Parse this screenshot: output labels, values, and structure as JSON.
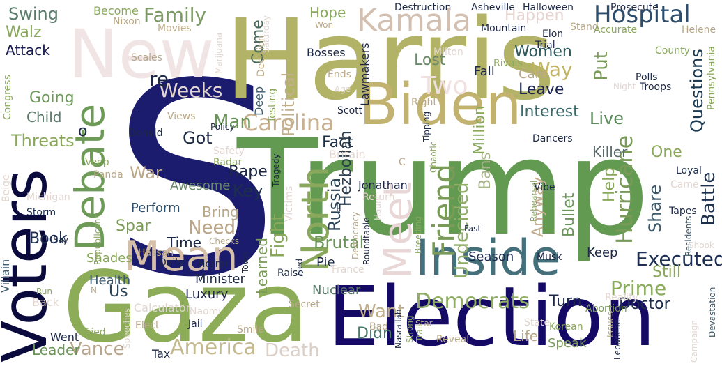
{
  "words": [
    {
      "text": "S",
      "color": "#1c1c6e"
    },
    {
      "text": "Trump",
      "color": "#639a52"
    },
    {
      "text": "Harris",
      "color": "#b3b368"
    },
    {
      "text": "Election",
      "color": "#140a66"
    },
    {
      "text": "Gaza",
      "color": "#8cac58"
    },
    {
      "text": "Voters",
      "color": "#0a0a3c"
    },
    {
      "text": "New",
      "color": "#f1e4e4"
    },
    {
      "text": "Biden",
      "color": "#c2b270"
    },
    {
      "text": "Inside",
      "color": "#44707c"
    },
    {
      "text": "Debate",
      "color": "#6e9a58"
    },
    {
      "text": "Mean",
      "color": "#d5bfa8"
    },
    {
      "text": "Meet",
      "color": "#e9d7d7"
    },
    {
      "text": "North",
      "color": "#8aa85c"
    },
    {
      "text": "Kamala",
      "color": "#d2bfb0"
    },
    {
      "text": "Hospital",
      "color": "#2c4e6c"
    },
    {
      "text": "Friend",
      "color": "#7a9a58"
    },
    {
      "text": "Family",
      "color": "#7b9a64"
    },
    {
      "text": "Carolina",
      "color": "#c8b090"
    },
    {
      "text": "Democrats",
      "color": "#8fae64"
    },
    {
      "text": "Undecided",
      "color": "#8fae68"
    },
    {
      "text": "Hurricane",
      "color": "#7a9a58"
    },
    {
      "text": "Executed",
      "color": "#1c2f52"
    },
    {
      "text": "Prime",
      "color": "#8aac5c"
    },
    {
      "text": "Vance",
      "color": "#b8a58c"
    },
    {
      "text": "America",
      "color": "#c4b88e"
    },
    {
      "text": "Questions",
      "color": "#1c3b52"
    },
    {
      "text": "Battle",
      "color": "#1c2f4c"
    },
    {
      "text": "Want",
      "color": "#c0ae8a"
    },
    {
      "text": "Put",
      "color": "#7a9a58"
    },
    {
      "text": "Way",
      "color": "#c2b464"
    },
    {
      "text": "Swing",
      "color": "#5a7c6a"
    },
    {
      "text": "Walz",
      "color": "#8aa85c"
    },
    {
      "text": "Attack",
      "color": "#16184e"
    },
    {
      "text": "Going",
      "color": "#6e9a58"
    },
    {
      "text": "Child",
      "color": "#5a7a6a"
    },
    {
      "text": "Threats",
      "color": "#8aa85c"
    },
    {
      "text": "Weeks",
      "color": "#e3d6d0"
    },
    {
      "text": "Book",
      "color": "#1c2f52"
    },
    {
      "text": "Need",
      "color": "#bca688"
    },
    {
      "text": "Key",
      "color": "#1c2f4c"
    },
    {
      "text": "War",
      "color": "#bca688"
    },
    {
      "text": "Rape",
      "color": "#1c2844"
    },
    {
      "text": "Fight",
      "color": "#8aa85c"
    },
    {
      "text": "Russia",
      "color": "#2c4458"
    },
    {
      "text": "Brutal",
      "color": "#6a9458"
    },
    {
      "text": "Learned",
      "color": "#7a9a58"
    },
    {
      "text": "Hezbollah",
      "color": "#2c3e50"
    },
    {
      "text": "Fact",
      "color": "#1c3044"
    },
    {
      "text": "Political",
      "color": "#c2b08c"
    },
    {
      "text": "Lost",
      "color": "#6a8a6a"
    },
    {
      "text": "Two",
      "color": "#f0e0e0"
    },
    {
      "text": "Hope",
      "color": "#8aa85c"
    },
    {
      "text": "Come",
      "color": "#4a6a5a"
    },
    {
      "text": "Happen",
      "color": "#e7d4d0"
    },
    {
      "text": "Women",
      "color": "#2c5a5c"
    },
    {
      "text": "Leave",
      "color": "#1c2452"
    },
    {
      "text": "Million",
      "color": "#8aa85c"
    },
    {
      "text": "Interest",
      "color": "#3c6a6c"
    },
    {
      "text": "Live",
      "color": "#5a8a5a"
    },
    {
      "text": "Killer",
      "color": "#5a6a6a"
    },
    {
      "text": "One",
      "color": "#8aa85c"
    },
    {
      "text": "Help",
      "color": "#8aa85c"
    },
    {
      "text": "Share",
      "color": "#3c5a6c"
    },
    {
      "text": "Still",
      "color": "#8aa85c"
    },
    {
      "text": "Bullet",
      "color": "#6a9458"
    },
    {
      "text": "Bans",
      "color": "#a8b48a"
    },
    {
      "text": "Anyway",
      "color": "#c2ae8e"
    },
    {
      "text": "Doctor",
      "color": "#1c2c50"
    },
    {
      "text": "Turn",
      "color": "#1c2846"
    },
    {
      "text": "Didn",
      "color": "#4a7a6a"
    },
    {
      "text": "Life",
      "color": "#b8a888"
    },
    {
      "text": "Speak",
      "color": "#7a9a58"
    },
    {
      "text": "Death",
      "color": "#dccfc6"
    },
    {
      "text": "Leader",
      "color": "#6a9458"
    },
    {
      "text": "Perform",
      "color": "#2c4e6c"
    },
    {
      "text": "Bring",
      "color": "#b8a888"
    },
    {
      "text": "Spar",
      "color": "#7a9a58"
    },
    {
      "text": "Time",
      "color": "#1c2846"
    },
    {
      "text": "Got",
      "color": "#1c2a44"
    },
    {
      "text": "Man",
      "color": "#6a9458"
    },
    {
      "text": "Us",
      "color": "#2c4458"
    },
    {
      "text": "Health",
      "color": "#3c5a6c"
    },
    {
      "text": "Luxury",
      "color": "#1c2444"
    },
    {
      "text": "Minister",
      "color": "#1c2844"
    },
    {
      "text": "Nuclear",
      "color": "#5a7a6a"
    },
    {
      "text": "Pie",
      "color": "#1c2a44"
    },
    {
      "text": "Season",
      "color": "#1c2c50"
    },
    {
      "text": "Keep",
      "color": "#1c2846"
    },
    {
      "text": "Care",
      "color": "#b8a888"
    },
    {
      "text": "Fall",
      "color": "#1c2844"
    },
    {
      "text": "Awesome",
      "color": "#6a8a6a"
    },
    {
      "text": "Shades",
      "color": "#8aa85c"
    },
    {
      "text": "Went",
      "color": "#1c2846"
    },
    {
      "text": "Tax",
      "color": "#1c2846"
    },
    {
      "text": "Calculator",
      "color": "#e0d6d0"
    },
    {
      "text": "Villain",
      "color": "#3c5a6c"
    },
    {
      "text": "Back",
      "color": "#e3d6d0"
    },
    {
      "text": "Storm",
      "color": "#1c2c50"
    },
    {
      "text": "Michigan",
      "color": "#e3d6d0"
    },
    {
      "text": "Become",
      "color": "#8aa85c"
    },
    {
      "text": "Nixon",
      "color": "#b8a888"
    },
    {
      "text": "Movies",
      "color": "#c2b08c"
    },
    {
      "text": "Bosses",
      "color": "#1c2846"
    },
    {
      "text": "Lawmakers",
      "color": "#1c2444"
    },
    {
      "text": "Deep",
      "color": "#3c5a6c"
    },
    {
      "text": "Testing",
      "color": "#8aa85c"
    },
    {
      "text": "Decision",
      "color": "#b8a888"
    },
    {
      "text": "Ends",
      "color": "#b8a888"
    },
    {
      "text": "Scott",
      "color": "#1c2846"
    },
    {
      "text": "Jonathan",
      "color": "#1c2444"
    },
    {
      "text": "Britain",
      "color": "#e3d6d0"
    },
    {
      "text": "Return",
      "color": "#e3d6d0"
    },
    {
      "text": "Democracy",
      "color": "#b8a888"
    },
    {
      "text": "Roundtable",
      "color": "#1c2846"
    },
    {
      "text": "Haunt",
      "color": "#e3d6d0"
    },
    {
      "text": "Fast",
      "color": "#1c2c50"
    },
    {
      "text": "Breeding",
      "color": "#8aa85c"
    },
    {
      "text": "Tipping",
      "color": "#1c2c50"
    },
    {
      "text": "Chaotic",
      "color": "#8aa85c"
    },
    {
      "text": "Dancers",
      "color": "#1c2846"
    },
    {
      "text": "Rehearsal",
      "color": "#8aa85c"
    },
    {
      "text": "Vibe",
      "color": "#1c2846"
    },
    {
      "text": "Came",
      "color": "#e3d6d0"
    },
    {
      "text": "Loyal",
      "color": "#1c2c50"
    },
    {
      "text": "Tapes",
      "color": "#1c2846"
    },
    {
      "text": "Residents",
      "color": "#3c5a6c"
    },
    {
      "text": "Shook",
      "color": "#e3d6d0"
    },
    {
      "text": "Devastation",
      "color": "#3c5a6c"
    },
    {
      "text": "Musk",
      "color": "#1c2444"
    },
    {
      "text": "Reality",
      "color": "#e3d6d0"
    },
    {
      "text": "Abortion",
      "color": "#7a9a58"
    },
    {
      "text": "Issues",
      "color": "#b8a888"
    },
    {
      "text": "Lebanese",
      "color": "#1c2846"
    },
    {
      "text": "Korean",
      "color": "#8aa85c"
    },
    {
      "text": "State",
      "color": "#e3d6d0"
    },
    {
      "text": "Campaign",
      "color": "#e3d6d0"
    },
    {
      "text": "Reveal",
      "color": "#b8a888"
    },
    {
      "text": "Star",
      "color": "#b8a888"
    },
    {
      "text": "Trail",
      "color": "#8aa85c"
    },
    {
      "text": "Strong",
      "color": "#8aa85c"
    },
    {
      "text": "Nasrallah",
      "color": "#1c2846"
    },
    {
      "text": "Bad",
      "color": "#b8a888"
    },
    {
      "text": "France",
      "color": "#e3d6d0"
    },
    {
      "text": "Raise",
      "color": "#1c2846"
    },
    {
      "text": "Lied",
      "color": "#1c2846"
    },
    {
      "text": "Town",
      "color": "#1c2846"
    },
    {
      "text": "Secret",
      "color": "#b8a888"
    },
    {
      "text": "Naomi",
      "color": "#e3d6d0"
    },
    {
      "text": "Jail",
      "color": "#1c2846"
    },
    {
      "text": "Smile",
      "color": "#b8a888"
    },
    {
      "text": "Elect",
      "color": "#b8a888"
    },
    {
      "text": "Speeches",
      "color": "#e3d6d0"
    },
    {
      "text": "Tried",
      "color": "#8aa85c"
    },
    {
      "text": "N",
      "color": "#b8a888"
    },
    {
      "text": "Run",
      "color": "#8aa85c"
    },
    {
      "text": "Horror",
      "color": "#1c2846"
    },
    {
      "text": "Hassan",
      "color": "#b8a888"
    },
    {
      "text": "Daily",
      "color": "#1c2846"
    },
    {
      "text": "Checks",
      "color": "#b8a888"
    },
    {
      "text": "Say",
      "color": "#1c2846"
    },
    {
      "text": "Radar",
      "color": "#8aa85c"
    },
    {
      "text": "Safety",
      "color": "#e3d6d0"
    },
    {
      "text": "Republicans",
      "color": "#8aa85c"
    },
    {
      "text": "Veep",
      "color": "#8aa85c"
    },
    {
      "text": "Panda",
      "color": "#b8a888"
    },
    {
      "text": "Beige",
      "color": "#e3d6d0"
    },
    {
      "text": "Congress",
      "color": "#8aa85c"
    },
    {
      "text": "Views",
      "color": "#b8a888"
    },
    {
      "text": "Donald",
      "color": "#1c2846"
    },
    {
      "text": "Policy",
      "color": "#1c2846"
    },
    {
      "text": "Scales",
      "color": "#b8a888"
    },
    {
      "text": "Marijuana",
      "color": "#e3d6d0"
    },
    {
      "text": "Saturday",
      "color": "#e3d6d0"
    },
    {
      "text": "Won",
      "color": "#b8a888"
    },
    {
      "text": "Destruction",
      "color": "#1c2846"
    },
    {
      "text": "Milton",
      "color": "#e3d6d0"
    },
    {
      "text": "Age",
      "color": "#e3d6d0"
    },
    {
      "text": "Right",
      "color": "#b8a888"
    },
    {
      "text": "Asheville",
      "color": "#1c2846"
    },
    {
      "text": "Halloween",
      "color": "#1c2846"
    },
    {
      "text": "Mountain",
      "color": "#1c2846"
    },
    {
      "text": "Rivals",
      "color": "#8aa85c"
    },
    {
      "text": "Elon",
      "color": "#1c2846"
    },
    {
      "text": "Trial",
      "color": "#1c2846"
    },
    {
      "text": "Stand",
      "color": "#b8a888"
    },
    {
      "text": "Accurate",
      "color": "#8aa85c"
    },
    {
      "text": "Prosecute",
      "color": "#1c2846"
    },
    {
      "text": "Helene",
      "color": "#b8a888"
    },
    {
      "text": "County",
      "color": "#8aa85c"
    },
    {
      "text": "Pennsylvania",
      "color": "#8aa85c"
    },
    {
      "text": "Polls",
      "color": "#1c2846"
    },
    {
      "text": "Troops",
      "color": "#1c2846"
    },
    {
      "text": "Night",
      "color": "#e3d6d0"
    },
    {
      "text": "Tragedy",
      "color": "#1c2846"
    },
    {
      "text": "Victims",
      "color": "#e3d6d0"
    },
    {
      "text": "re",
      "color": "#1c2846"
    },
    {
      "text": "o",
      "color": "#1c2846"
    },
    {
      "text": "ll",
      "color": "#1c2846"
    },
    {
      "text": "C",
      "color": "#b8a888"
    }
  ]
}
